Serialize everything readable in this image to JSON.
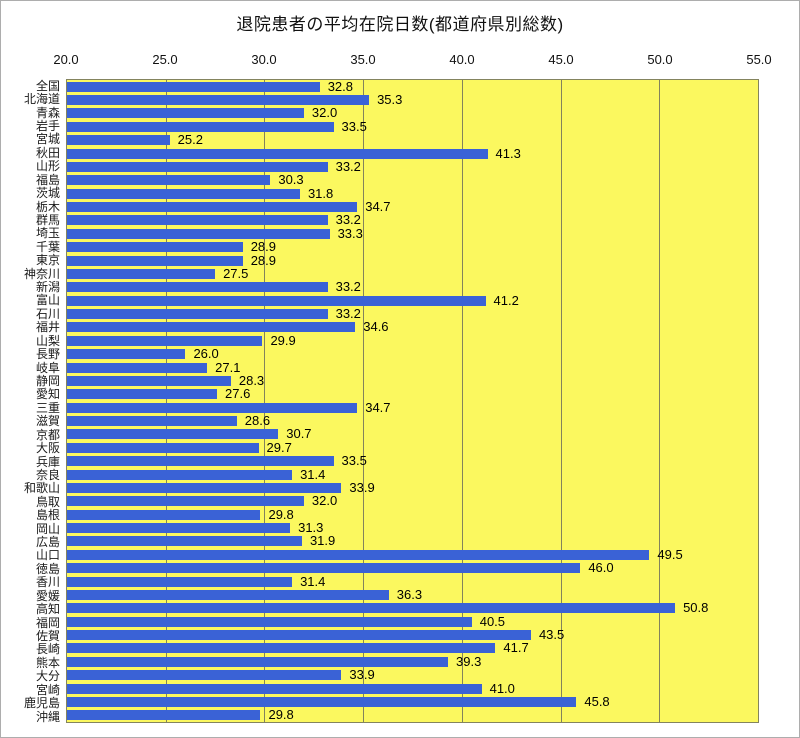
{
  "chart_data": {
    "type": "bar",
    "orientation": "horizontal",
    "title": "退院患者の平均在院日数(都道府県別総数)",
    "categories": [
      "全国",
      "北海道",
      "青森",
      "岩手",
      "宮城",
      "秋田",
      "山形",
      "福島",
      "茨城",
      "栃木",
      "群馬",
      "埼玉",
      "千葉",
      "東京",
      "神奈川",
      "新潟",
      "富山",
      "石川",
      "福井",
      "山梨",
      "長野",
      "岐阜",
      "静岡",
      "愛知",
      "三重",
      "滋賀",
      "京都",
      "大阪",
      "兵庫",
      "奈良",
      "和歌山",
      "鳥取",
      "島根",
      "岡山",
      "広島",
      "山口",
      "徳島",
      "香川",
      "愛媛",
      "高知",
      "福岡",
      "佐賀",
      "長崎",
      "熊本",
      "大分",
      "宮崎",
      "鹿児島",
      "沖縄"
    ],
    "values": [
      32.8,
      35.3,
      32.0,
      33.5,
      25.2,
      41.3,
      33.2,
      30.3,
      31.8,
      34.7,
      33.2,
      33.3,
      28.9,
      28.9,
      27.5,
      33.2,
      41.2,
      33.2,
      34.6,
      29.9,
      26.0,
      27.1,
      28.3,
      27.6,
      34.7,
      28.6,
      30.7,
      29.7,
      33.5,
      31.4,
      33.9,
      32.0,
      29.8,
      31.3,
      31.9,
      49.5,
      46.0,
      31.4,
      36.3,
      50.8,
      40.5,
      43.5,
      41.7,
      39.3,
      33.9,
      41.0,
      45.8,
      29.8
    ],
    "xlim": [
      20.0,
      55.0
    ],
    "x_tick_labels": [
      "20.0",
      "25.0",
      "30.0",
      "35.0",
      "40.0",
      "45.0",
      "50.0",
      "55.0"
    ],
    "gridline_values": [
      25.0,
      30.0,
      35.0,
      40.0,
      45.0,
      50.0
    ],
    "value_labels_shown": true,
    "xlabel": "",
    "ylabel": "",
    "legend": "none",
    "grid": "vertical",
    "colors": {
      "bar": "#3a62d6",
      "plot_background": "#fbf85f",
      "gridline": "#83835c",
      "plot_border": "#84845e",
      "title_text": "#111111",
      "tick_text": "#111111",
      "category_text": "#1a1a1a",
      "value_text": "#000000"
    }
  }
}
